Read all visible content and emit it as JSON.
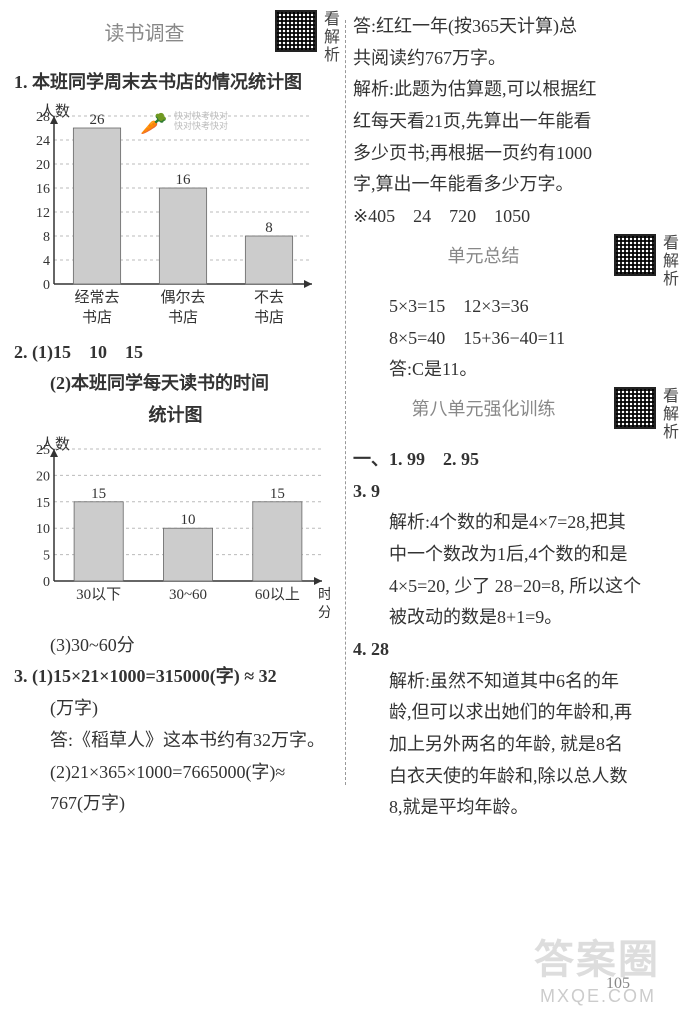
{
  "left": {
    "sec1": {
      "title": "读书调查",
      "qr_label": "看解析"
    },
    "q1": {
      "title": "1. 本班同学周末去书店的情况统计图",
      "chart": {
        "y_label": "人数",
        "categories": [
          "经常去\n书店",
          "偶尔去\n书店",
          "不去\n书店"
        ],
        "values": [
          26,
          16,
          8
        ],
        "y_max": 28,
        "y_step": 4,
        "bar_color": "#cccccc",
        "axis_color": "#333333",
        "grid_color": "#bbbbbb",
        "carrot_note": [
          "快对快考快对",
          "快对快考快对"
        ]
      }
    },
    "q2": {
      "p1": "2. (1)15　10　15",
      "p2_title": "(2)本班同学每天读书的时间",
      "p2_sub": "统计图",
      "chart": {
        "y_label": "人数",
        "categories": [
          "30以下",
          "30~60",
          "60以上"
        ],
        "x_unit": "时间/\n分",
        "values": [
          15,
          10,
          15
        ],
        "y_max": 25,
        "y_step": 5,
        "bar_color": "#cccccc",
        "axis_color": "#333333",
        "grid_color": "#bbbbbb"
      },
      "p3": "(3)30~60分"
    },
    "q3": {
      "l1": "3. (1)15×21×1000=315000(字) ≈ 32",
      "l1b": "(万字)",
      "l2": "答:《稻草人》这本书约有32万字。",
      "l3": "(2)21×365×1000=7665000(字)≈",
      "l3b": "767(万字)"
    }
  },
  "right": {
    "ans": {
      "l1": "答:红红一年(按365天计算)总",
      "l2": "共阅读约767万字。"
    },
    "exp": {
      "l1": "解析:此题为估算题,可以根据红",
      "l2": "红每天看21页,先算出一年能看",
      "l3": "多少页书;再根据一页约有1000",
      "l4": "字,算出一年能看多少万字。"
    },
    "star": "※405　24　720　1050",
    "sec2": {
      "title": "单元总结",
      "qr_label": "看解析",
      "l1": "5×3=15　12×3=36",
      "l2": "8×5=40　15+36−40=11",
      "l3": "答:C是11。"
    },
    "sec3": {
      "title": "第八单元强化训练",
      "qr_label": "看解析",
      "line1": "一、1. 99　2. 95"
    },
    "q3b": {
      "l1": "3. 9",
      "e1": "解析:4个数的和是4×7=28,把其",
      "e2": "中一个数改为1后,4个数的和是",
      "e3": "4×5=20, 少了 28−20=8, 所以这个",
      "e4": "被改动的数是8+1=9。"
    },
    "q4": {
      "l1": "4. 28",
      "e1": "解析:虽然不知道其中6名的年",
      "e2": "龄,但可以求出她们的年龄和,再",
      "e3": "加上另外两名的年龄, 就是8名",
      "e4": "白衣天使的年龄和,除以总人数",
      "e5": "8,就是平均年龄。"
    }
  },
  "page_number": "105",
  "watermark": "答案圈",
  "watermark_sub": "MXQE.COM"
}
